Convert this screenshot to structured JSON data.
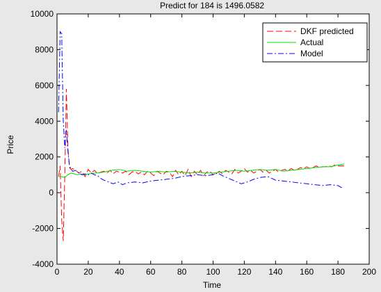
{
  "colors": {
    "figure_bg": "#e8e8e8",
    "axes_bg": "#ffffff",
    "series_predicted": "#ff0000",
    "series_actual": "#00dd00",
    "series_model": "#0000ff"
  },
  "chart_data": {
    "type": "line",
    "title": "Predict for  184  is    1496.0582",
    "xlabel": "Time",
    "ylabel": "Price",
    "xlim": [
      0,
      200
    ],
    "ylim": [
      -4000,
      10000
    ],
    "xticks": [
      0,
      20,
      40,
      60,
      80,
      100,
      120,
      140,
      160,
      180,
      200
    ],
    "yticks": [
      -4000,
      -2000,
      0,
      2000,
      4000,
      6000,
      8000,
      10000
    ],
    "grid": false,
    "legend_position": "top-right",
    "series": [
      {
        "name": "DKF predicted",
        "color": "#ff0000",
        "dash": "dashed",
        "x": [
          1,
          2,
          3,
          4,
          5,
          6,
          7,
          8,
          9,
          10,
          12,
          14,
          16,
          18,
          20,
          22,
          24,
          26,
          28,
          30,
          32,
          34,
          36,
          38,
          40,
          42,
          44,
          46,
          48,
          50,
          52,
          54,
          56,
          58,
          60,
          62,
          64,
          66,
          68,
          70,
          72,
          74,
          76,
          78,
          80,
          82,
          84,
          86,
          88,
          90,
          92,
          94,
          96,
          98,
          100,
          102,
          104,
          106,
          108,
          110,
          112,
          114,
          116,
          118,
          120,
          122,
          124,
          126,
          128,
          130,
          132,
          134,
          136,
          138,
          140,
          142,
          144,
          146,
          148,
          150,
          152,
          154,
          156,
          158,
          160,
          162,
          164,
          166,
          168,
          170,
          172,
          174,
          176,
          178,
          180,
          182,
          184
        ],
        "y": [
          900,
          1500,
          -1500,
          -2700,
          1000,
          5800,
          2500,
          1400,
          1300,
          1350,
          1250,
          1100,
          1200,
          900,
          1300,
          1100,
          1250,
          1050,
          1150,
          1200,
          1100,
          1250,
          1050,
          1200,
          1150,
          1100,
          1200,
          1000,
          1150,
          1200,
          1050,
          1150,
          1000,
          1200,
          1100,
          950,
          1200,
          1100,
          1000,
          1200,
          1150,
          900,
          1250,
          1000,
          1200,
          950,
          1300,
          900,
          1200,
          1000,
          1250,
          950,
          1150,
          1200,
          1000,
          1100,
          1200,
          1050,
          1250,
          1150,
          1050,
          1300,
          1100,
          1200,
          1350,
          1150,
          1250,
          1100,
          1200,
          1300,
          1150,
          1250,
          1100,
          1200,
          1300,
          1150,
          1250,
          1300,
          1200,
          1350,
          1250,
          1300,
          1400,
          1350,
          1450,
          1350,
          1400,
          1500,
          1400,
          1450,
          1450,
          1500,
          1450,
          1550,
          1500,
          1500,
          1500
        ]
      },
      {
        "name": "Actual",
        "color": "#00dd00",
        "dash": "solid",
        "x": [
          1,
          3,
          5,
          7,
          9,
          11,
          13,
          15,
          17,
          20,
          25,
          30,
          35,
          40,
          45,
          50,
          55,
          60,
          65,
          70,
          75,
          80,
          85,
          90,
          95,
          100,
          105,
          110,
          115,
          120,
          125,
          130,
          135,
          140,
          145,
          150,
          155,
          160,
          165,
          170,
          175,
          180,
          184
        ],
        "y": [
          900,
          900,
          850,
          1000,
          1100,
          1050,
          1000,
          1050,
          1000,
          1050,
          1100,
          1150,
          1250,
          1300,
          1200,
          1250,
          1200,
          1150,
          1200,
          1150,
          1200,
          1150,
          1100,
          1150,
          1100,
          1100,
          1150,
          1200,
          1250,
          1200,
          1250,
          1300,
          1250,
          1300,
          1200,
          1250,
          1300,
          1350,
          1400,
          1450,
          1450,
          1550,
          1600
        ]
      },
      {
        "name": "Model",
        "color": "#0000ff",
        "dash": "dashdot",
        "x": [
          1,
          2,
          3,
          4,
          5,
          6,
          7,
          8,
          9,
          10,
          12,
          14,
          16,
          18,
          20,
          22,
          24,
          26,
          28,
          30,
          33,
          36,
          39,
          42,
          45,
          50,
          55,
          60,
          65,
          70,
          75,
          80,
          85,
          90,
          95,
          100,
          103,
          106,
          110,
          114,
          118,
          122,
          126,
          130,
          135,
          140,
          145,
          150,
          155,
          160,
          165,
          170,
          175,
          180,
          183
        ],
        "y": [
          4500,
          9000,
          8900,
          4000,
          2500,
          3500,
          2300,
          1500,
          1300,
          1200,
          1250,
          1100,
          1000,
          1050,
          1000,
          1100,
          1000,
          950,
          800,
          700,
          600,
          500,
          600,
          450,
          550,
          600,
          550,
          650,
          700,
          750,
          800,
          900,
          950,
          1000,
          950,
          1000,
          1100,
          950,
          800,
          650,
          500,
          600,
          750,
          850,
          900,
          700,
          650,
          600,
          550,
          500,
          450,
          400,
          450,
          400,
          250
        ]
      }
    ]
  }
}
